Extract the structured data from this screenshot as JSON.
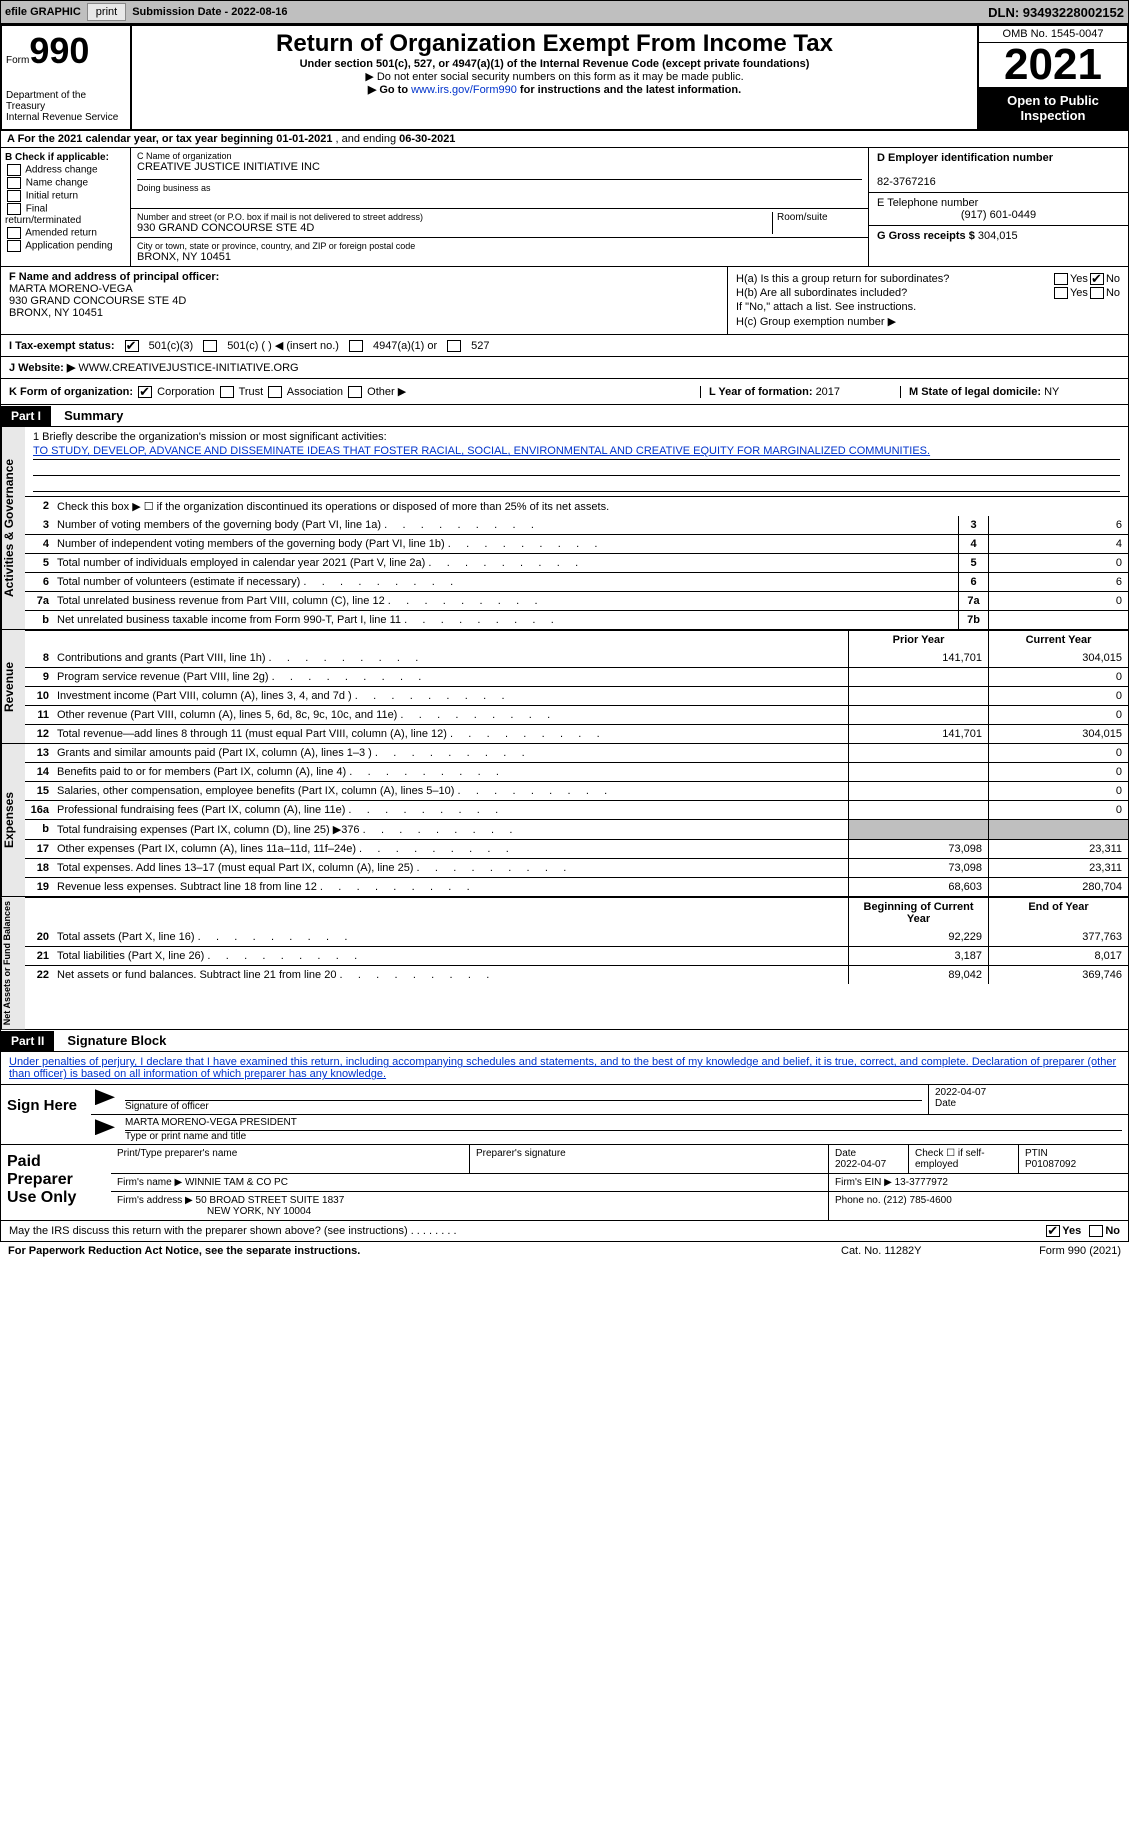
{
  "topbar": {
    "efile_label": "efile GRAPHIC",
    "print_btn": "print",
    "sub_date_label": "Submission Date - ",
    "sub_date": "2022-08-16",
    "dln": "DLN: 93493228002152"
  },
  "header": {
    "form_label": "Form",
    "form_no": "990",
    "dept": "Department of the Treasury",
    "irs": "Internal Revenue Service",
    "title": "Return of Organization Exempt From Income Tax",
    "subtitle": "Under section 501(c), 527, or 4947(a)(1) of the Internal Revenue Code (except private foundations)",
    "note1": "▶ Do not enter social security numbers on this form as it may be made public.",
    "note2_pre": "▶ Go to ",
    "note2_link": "www.irs.gov/Form990",
    "note2_post": " for instructions and the latest information.",
    "omb": "OMB No. 1545-0047",
    "year": "2021",
    "open_pub": "Open to Public Inspection"
  },
  "rowA": {
    "text_pre": "A For the 2021 calendar year, or tax year beginning ",
    "begin": "01-01-2021",
    "mid": "  , and ending ",
    "end": "06-30-2021"
  },
  "colB": {
    "label": "B Check if applicable:",
    "opts": [
      "Address change",
      "Name change",
      "Initial return",
      "Final return/terminated",
      "Amended return",
      "Application pending"
    ]
  },
  "colC": {
    "name_lbl": "C Name of organization",
    "name": "CREATIVE JUSTICE INITIATIVE INC",
    "dba_lbl": "Doing business as",
    "addr_lbl": "Number and street (or P.O. box if mail is not delivered to street address)",
    "addr": "930 GRAND CONCOURSE STE 4D",
    "room_lbl": "Room/suite",
    "city_lbl": "City or town, state or province, country, and ZIP or foreign postal code",
    "city": "BRONX, NY  10451"
  },
  "colD": {
    "ein_lbl": "D Employer identification number",
    "ein": "82-3767216",
    "tel_lbl": "E Telephone number",
    "tel": "(917) 601-0449",
    "gross_lbl": "G Gross receipts $",
    "gross": "304,015"
  },
  "rowF": {
    "lbl": "F Name and address of principal officer:",
    "name": "MARTA MORENO-VEGA",
    "addr": "930 GRAND CONCOURSE STE 4D",
    "city": "BRONX, NY  10451"
  },
  "rowH": {
    "ha": "H(a)  Is this a group return for subordinates?",
    "hb": "H(b)  Are all subordinates included?",
    "hb_note": "If \"No,\" attach a list. See instructions.",
    "hc": "H(c)  Group exemption number ▶",
    "yes": "Yes",
    "no": "No"
  },
  "rowI": {
    "lbl": "I   Tax-exempt status:",
    "o1": "501(c)(3)",
    "o2": "501(c) (   ) ◀ (insert no.)",
    "o3": "4947(a)(1) or",
    "o4": "527"
  },
  "rowJ": {
    "lbl": "J   Website: ▶  ",
    "val": "WWW.CREATIVEJUSTICE-INITIATIVE.ORG"
  },
  "rowK": {
    "lbl": "K Form of organization:",
    "o1": "Corporation",
    "o2": "Trust",
    "o3": "Association",
    "o4": "Other ▶",
    "l_lbl": "L Year of formation: ",
    "l_val": "2017",
    "m_lbl": "M State of legal domicile: ",
    "m_val": "NY"
  },
  "part1": {
    "tag": "Part I",
    "title": "Summary"
  },
  "summary": {
    "tabs": [
      "Activities & Governance",
      "Revenue",
      "Expenses",
      "Net Assets or Fund Balances"
    ],
    "mission_lbl": "1   Briefly describe the organization's mission or most significant activities:",
    "mission": "TO STUDY, DEVELOP, ADVANCE AND DISSEMINATE IDEAS THAT FOSTER RACIAL, SOCIAL, ENVIRONMENTAL AND CREATIVE EQUITY FOR MARGINALIZED COMMUNITIES.",
    "line2": "Check this box ▶ ☐  if the organization discontinued its operations or disposed of more than 25% of its net assets.",
    "gov_rows": [
      {
        "n": "3",
        "d": "Number of voting members of the governing body (Part VI, line 1a)",
        "box": "3",
        "v": "6"
      },
      {
        "n": "4",
        "d": "Number of independent voting members of the governing body (Part VI, line 1b)",
        "box": "4",
        "v": "4"
      },
      {
        "n": "5",
        "d": "Total number of individuals employed in calendar year 2021 (Part V, line 2a)",
        "box": "5",
        "v": "0"
      },
      {
        "n": "6",
        "d": "Total number of volunteers (estimate if necessary)",
        "box": "6",
        "v": "6"
      },
      {
        "n": "7a",
        "d": "Total unrelated business revenue from Part VIII, column (C), line 12",
        "box": "7a",
        "v": "0"
      },
      {
        "n": "b",
        "d": "Net unrelated business taxable income from Form 990-T, Part I, line 11",
        "box": "7b",
        "v": ""
      }
    ],
    "py_head": "Prior Year",
    "cy_head": "Current Year",
    "rev_rows": [
      {
        "n": "8",
        "d": "Contributions and grants (Part VIII, line 1h)",
        "py": "141,701",
        "cy": "304,015"
      },
      {
        "n": "9",
        "d": "Program service revenue (Part VIII, line 2g)",
        "py": "",
        "cy": "0"
      },
      {
        "n": "10",
        "d": "Investment income (Part VIII, column (A), lines 3, 4, and 7d )",
        "py": "",
        "cy": "0"
      },
      {
        "n": "11",
        "d": "Other revenue (Part VIII, column (A), lines 5, 6d, 8c, 9c, 10c, and 11e)",
        "py": "",
        "cy": "0"
      },
      {
        "n": "12",
        "d": "Total revenue—add lines 8 through 11 (must equal Part VIII, column (A), line 12)",
        "py": "141,701",
        "cy": "304,015"
      }
    ],
    "exp_rows": [
      {
        "n": "13",
        "d": "Grants and similar amounts paid (Part IX, column (A), lines 1–3 )",
        "py": "",
        "cy": "0"
      },
      {
        "n": "14",
        "d": "Benefits paid to or for members (Part IX, column (A), line 4)",
        "py": "",
        "cy": "0"
      },
      {
        "n": "15",
        "d": "Salaries, other compensation, employee benefits (Part IX, column (A), lines 5–10)",
        "py": "",
        "cy": "0"
      },
      {
        "n": "16a",
        "d": "Professional fundraising fees (Part IX, column (A), line 11e)",
        "py": "",
        "cy": "0"
      },
      {
        "n": "b",
        "d": "Total fundraising expenses (Part IX, column (D), line 25) ▶376",
        "py": "__shade__",
        "cy": "__shade__"
      },
      {
        "n": "17",
        "d": "Other expenses (Part IX, column (A), lines 11a–11d, 11f–24e)",
        "py": "73,098",
        "cy": "23,311"
      },
      {
        "n": "18",
        "d": "Total expenses. Add lines 13–17 (must equal Part IX, column (A), line 25)",
        "py": "73,098",
        "cy": "23,311"
      },
      {
        "n": "19",
        "d": "Revenue less expenses. Subtract line 18 from line 12",
        "py": "68,603",
        "cy": "280,704"
      }
    ],
    "by_head": "Beginning of Current Year",
    "ey_head": "End of Year",
    "net_rows": [
      {
        "n": "20",
        "d": "Total assets (Part X, line 16)",
        "py": "92,229",
        "cy": "377,763"
      },
      {
        "n": "21",
        "d": "Total liabilities (Part X, line 26)",
        "py": "3,187",
        "cy": "8,017"
      },
      {
        "n": "22",
        "d": "Net assets or fund balances. Subtract line 21 from line 20",
        "py": "89,042",
        "cy": "369,746"
      }
    ]
  },
  "part2": {
    "tag": "Part II",
    "title": "Signature Block"
  },
  "sig": {
    "intro": "Under penalties of perjury, I declare that I have examined this return, including accompanying schedules and statements, and to the best of my knowledge and belief, it is true, correct, and complete. Declaration of preparer (other than officer) is based on all information of which preparer has any knowledge.",
    "sign_here": "Sign Here",
    "sig_officer": "Signature of officer",
    "date": "2022-04-07",
    "date_lbl": "Date",
    "name": "MARTA MORENO-VEGA  PRESIDENT",
    "name_lbl": "Type or print name and title"
  },
  "prep": {
    "label": "Paid Preparer Use Only",
    "h1": "Print/Type preparer's name",
    "h2": "Preparer's signature",
    "h3": "Date",
    "h3v": "2022-04-07",
    "h4": "Check ☐ if self-employed",
    "h5": "PTIN",
    "h5v": "P01087092",
    "firm_lbl": "Firm's name    ▶",
    "firm": "WINNIE TAM & CO PC",
    "ein_lbl": "Firm's EIN ▶",
    "ein": "13-3777972",
    "addr_lbl": "Firm's address ▶",
    "addr": "50 BROAD STREET SUITE 1837",
    "addr2": "NEW YORK, NY  10004",
    "phone_lbl": "Phone no.",
    "phone": "(212) 785-4600"
  },
  "discuss": {
    "q": "May the IRS discuss this return with the preparer shown above? (see instructions)",
    "yes": "Yes",
    "no": "No"
  },
  "footer": {
    "l": "For Paperwork Reduction Act Notice, see the separate instructions.",
    "m": "Cat. No. 11282Y",
    "r": "Form 990 (2021)"
  }
}
